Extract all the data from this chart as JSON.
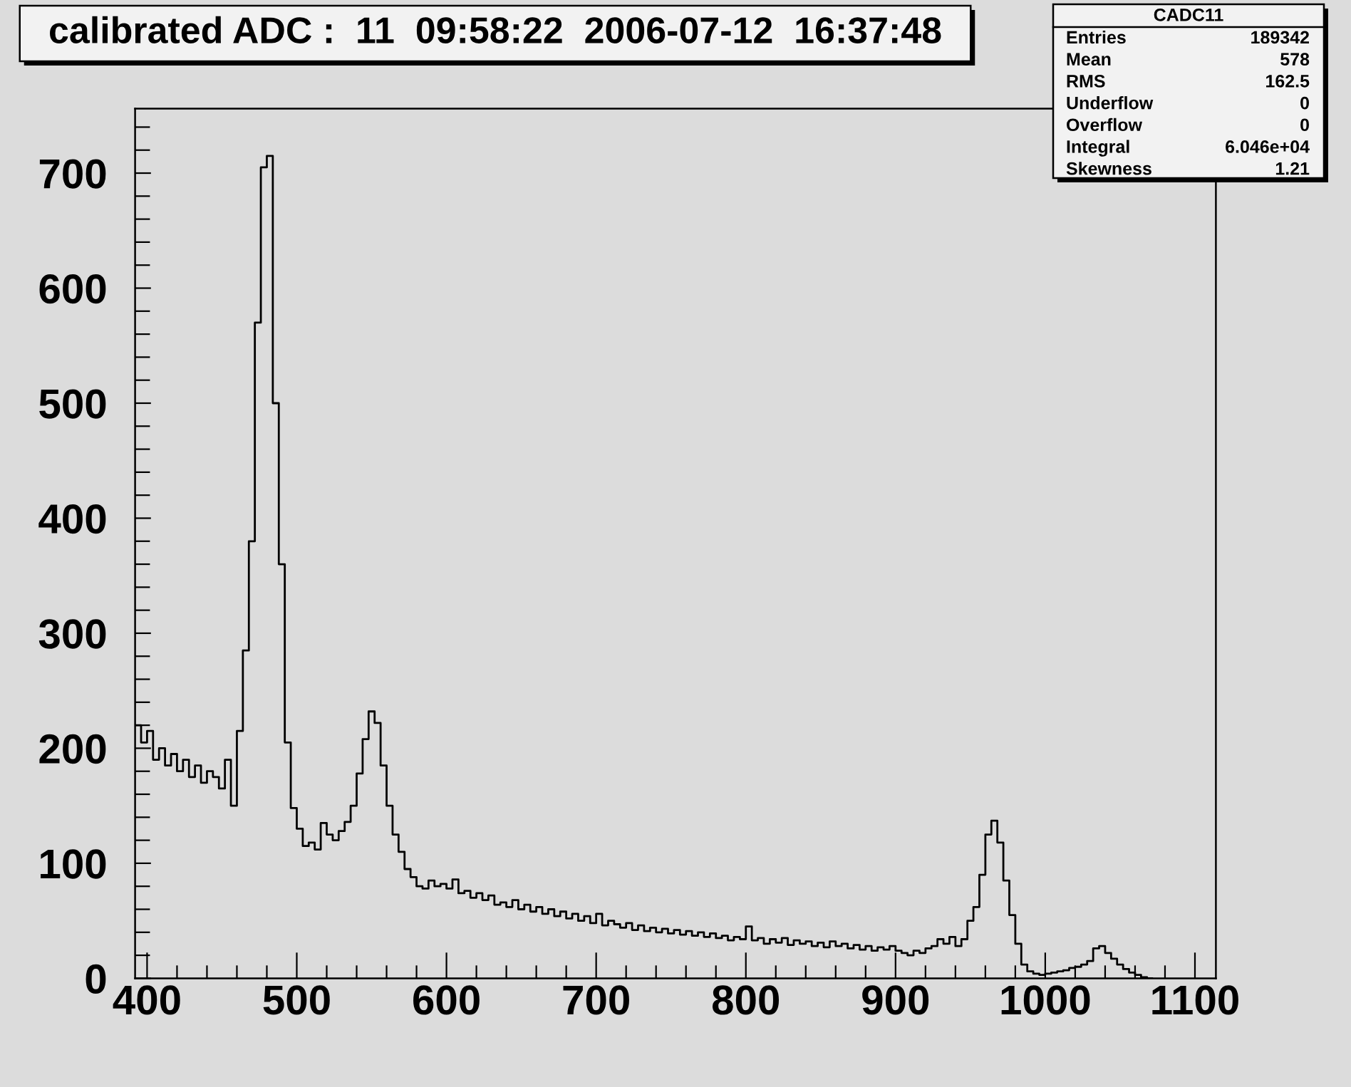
{
  "chart_data": {
    "type": "histogram",
    "title": "calibrated ADC :  11  09:58:22  2006-07-12  16:37:48",
    "annotations": [
      "CADC11",
      "Entries",
      "189342",
      "Mean",
      "578",
      "RMS",
      "162.5",
      "Underflow",
      "0",
      "Overflow",
      "0",
      "Integral",
      "6.046e+04",
      "Skewness",
      "1.21"
    ],
    "bins": [
      392,
      396,
      400,
      404,
      408,
      412,
      416,
      420,
      424,
      428,
      432,
      436,
      440,
      444,
      448,
      452,
      456,
      460,
      464,
      468,
      472,
      476,
      480,
      484,
      488,
      492,
      496,
      500,
      504,
      508,
      512,
      516,
      520,
      524,
      528,
      532,
      536,
      540,
      544,
      548,
      552,
      556,
      560,
      564,
      568,
      572,
      576,
      580,
      584,
      588,
      592,
      596,
      600,
      604,
      608,
      612,
      616,
      620,
      624,
      628,
      632,
      636,
      640,
      644,
      648,
      652,
      656,
      660,
      664,
      668,
      672,
      676,
      680,
      684,
      688,
      692,
      696,
      700,
      704,
      708,
      712,
      716,
      720,
      724,
      728,
      732,
      736,
      740,
      744,
      748,
      752,
      756,
      760,
      764,
      768,
      772,
      776,
      780,
      784,
      788,
      792,
      796,
      800,
      804,
      808,
      812,
      816,
      820,
      824,
      828,
      832,
      836,
      840,
      844,
      848,
      852,
      856,
      860,
      864,
      868,
      872,
      876,
      880,
      884,
      888,
      892,
      896,
      900,
      904,
      908,
      912,
      916,
      920,
      924,
      928,
      932,
      936,
      940,
      944,
      948,
      952,
      956,
      960,
      964,
      968,
      972,
      976,
      980,
      984,
      988,
      992,
      996,
      1000,
      1004,
      1008,
      1012,
      1016,
      1020,
      1024,
      1028,
      1032,
      1036,
      1040,
      1044,
      1048,
      1052,
      1056,
      1060,
      1064,
      1068,
      1072
    ],
    "values": [
      220,
      205,
      215,
      190,
      200,
      185,
      195,
      180,
      190,
      175,
      185,
      170,
      180,
      175,
      165,
      190,
      150,
      215,
      285,
      380,
      570,
      705,
      715,
      500,
      360,
      205,
      148,
      130,
      115,
      118,
      112,
      135,
      125,
      120,
      128,
      136,
      150,
      178,
      208,
      232,
      222,
      185,
      150,
      125,
      110,
      95,
      88,
      80,
      78,
      85,
      80,
      82,
      78,
      86,
      74,
      76,
      70,
      74,
      68,
      72,
      64,
      66,
      62,
      68,
      60,
      64,
      58,
      62,
      56,
      60,
      54,
      58,
      52,
      56,
      50,
      54,
      48,
      56,
      46,
      50,
      47,
      44,
      48,
      42,
      46,
      41,
      44,
      40,
      43,
      39,
      42,
      38,
      41,
      37,
      40,
      36,
      39,
      35,
      37,
      33,
      36,
      34,
      45,
      33,
      35,
      30,
      34,
      31,
      35,
      29,
      33,
      30,
      32,
      28,
      31,
      27,
      32,
      28,
      30,
      26,
      29,
      25,
      28,
      24,
      27,
      25,
      28,
      24,
      22,
      20,
      24,
      22,
      26,
      28,
      34,
      30,
      36,
      28,
      34,
      50,
      62,
      90,
      125,
      137,
      118,
      85,
      55,
      30,
      12,
      6,
      4,
      3,
      4,
      5,
      6,
      7,
      9,
      10,
      12,
      15,
      26,
      28,
      22,
      17,
      12,
      8,
      5,
      3,
      1,
      0
    ],
    "color": "#000000",
    "xlim": [
      392,
      1114
    ],
    "ylim": [
      0,
      756
    ],
    "xticks": [
      400,
      {
        "value": 420,
        "label": null
      },
      {
        "value": 440,
        "label": null
      },
      {
        "value": 460,
        "label": null
      },
      {
        "value": 480,
        "label": null
      },
      500,
      {
        "value": 520,
        "label": null
      },
      {
        "value": 540,
        "label": null
      },
      {
        "value": 560,
        "label": null
      },
      {
        "value": 580,
        "label": null
      },
      600,
      {
        "value": 620,
        "label": null
      },
      {
        "value": 640,
        "label": null
      },
      {
        "value": 660,
        "label": null
      },
      {
        "value": 680,
        "label": null
      },
      700,
      {
        "value": 720,
        "label": null
      },
      {
        "value": 740,
        "label": null
      },
      {
        "value": 760,
        "label": null
      },
      {
        "value": 780,
        "label": null
      },
      800,
      {
        "value": 820,
        "label": null
      },
      {
        "value": 840,
        "label": null
      },
      {
        "value": 860,
        "label": null
      },
      {
        "value": 880,
        "label": null
      },
      900,
      {
        "value": 920,
        "label": null
      },
      {
        "value": 940,
        "label": null
      },
      {
        "value": 960,
        "label": null
      },
      {
        "value": 980,
        "label": null
      },
      1000,
      {
        "value": 1020,
        "label": null
      },
      {
        "value": 1040,
        "label": null
      },
      {
        "value": 1060,
        "label": null
      },
      {
        "value": 1080,
        "label": null
      },
      1100
    ],
    "yticks": [
      0,
      {
        "value": 20,
        "label": null
      },
      {
        "value": 40,
        "label": null
      },
      {
        "value": 60,
        "label": null
      },
      {
        "value": 80,
        "label": null
      },
      100,
      {
        "value": 120,
        "label": null
      },
      {
        "value": 140,
        "label": null
      },
      {
        "value": 160,
        "label": null
      },
      {
        "value": 180,
        "label": null
      },
      200,
      {
        "value": 220,
        "label": null
      },
      {
        "value": 240,
        "label": null
      },
      {
        "value": 260,
        "label": null
      },
      {
        "value": 280,
        "label": null
      },
      300,
      {
        "value": 320,
        "label": null
      },
      {
        "value": 340,
        "label": null
      },
      {
        "value": 360,
        "label": null
      },
      {
        "value": 380,
        "label": null
      },
      400,
      {
        "value": 420,
        "label": null
      },
      {
        "value": 440,
        "label": null
      },
      {
        "value": 460,
        "label": null
      },
      {
        "value": 480,
        "label": null
      },
      500,
      {
        "value": 520,
        "label": null
      },
      {
        "value": 540,
        "label": null
      },
      {
        "value": 560,
        "label": null
      },
      {
        "value": 580,
        "label": null
      },
      600,
      {
        "value": 620,
        "label": null
      },
      {
        "value": 640,
        "label": null
      },
      {
        "value": 660,
        "label": null
      },
      {
        "value": 680,
        "label": null
      },
      700,
      {
        "value": 720,
        "label": null
      },
      {
        "value": 740,
        "label": null
      }
    ]
  }
}
